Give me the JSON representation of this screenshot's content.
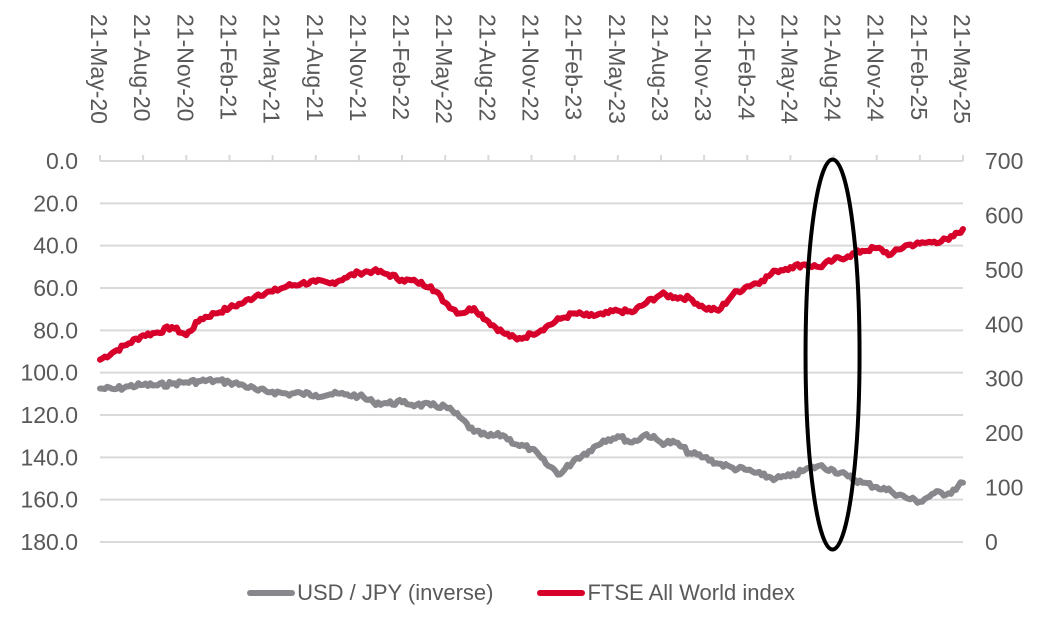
{
  "chart_data": {
    "type": "line",
    "title": "",
    "xlabel": "",
    "ylabel_left": "",
    "ylabel_right": "",
    "x_tick_labels": [
      "21-May-20",
      "21-Aug-20",
      "21-Nov-20",
      "21-Feb-21",
      "21-May-21",
      "21-Aug-21",
      "21-Nov-21",
      "21-Feb-22",
      "21-May-22",
      "21-Aug-22",
      "21-Nov-22",
      "21-Feb-23",
      "21-May-23",
      "21-Aug-23",
      "21-Nov-23",
      "21-Feb-24",
      "21-May-24",
      "21-Aug-24",
      "21-Nov-24",
      "21-Feb-25",
      "21-May-25"
    ],
    "y_left": {
      "range": [
        0,
        180
      ],
      "inverted": true,
      "tick_labels": [
        "0.0",
        "20.0",
        "40.0",
        "60.0",
        "80.0",
        "100.0",
        "120.0",
        "140.0",
        "160.0",
        "180.0"
      ],
      "ticks": [
        0,
        20,
        40,
        60,
        80,
        100,
        120,
        140,
        160,
        180
      ]
    },
    "y_right": {
      "range": [
        0,
        700
      ],
      "tick_labels": [
        "0",
        "100",
        "200",
        "300",
        "400",
        "500",
        "600",
        "700"
      ],
      "ticks": [
        0,
        100,
        200,
        300,
        400,
        500,
        600,
        700
      ]
    },
    "grid": true,
    "legend_position": "bottom",
    "x_months_from_start": [
      0,
      1,
      2,
      3,
      4,
      5,
      6,
      7,
      8,
      9,
      10,
      11,
      12,
      13,
      14,
      15,
      16,
      17,
      18,
      19,
      20,
      21,
      22,
      23,
      24,
      25,
      26,
      27,
      28,
      29,
      30,
      31,
      32,
      33,
      34,
      35,
      36,
      37,
      38,
      39,
      40,
      41,
      42,
      43,
      44,
      45,
      46,
      47,
      48,
      49,
      50,
      51,
      52,
      53,
      54,
      55,
      56,
      57,
      58,
      59,
      60
    ],
    "series": [
      {
        "name": "USD / JPY (inverse)",
        "axis": "left",
        "color": "#88878c",
        "values": [
          107.5,
          107.8,
          106.5,
          105.8,
          106,
          105.2,
          104.5,
          104,
          103.8,
          104.5,
          106,
          108.5,
          109,
          110,
          109.8,
          110.5,
          110.2,
          110.3,
          111,
          114,
          114.5,
          114,
          115.2,
          115.5,
          116,
          121,
          128,
          130,
          129.5,
          134,
          136,
          143,
          148,
          141,
          137,
          132,
          130,
          133,
          129,
          133,
          133,
          138,
          140,
          143,
          145,
          146,
          148.5,
          150,
          149,
          146,
          144,
          146,
          149,
          152,
          154,
          156,
          159,
          161,
          145,
          143,
          150
        ],
        "values_tail": [
          154,
          157,
          157,
          152,
          149,
          143,
          145
        ]
      },
      {
        "name": "FTSE All World index",
        "axis": "right",
        "color": "#d6002a",
        "values": [
          335,
          350,
          365,
          380,
          385,
          395,
          380,
          410,
          420,
          430,
          440,
          455,
          460,
          470,
          475,
          478,
          475,
          485,
          495,
          498,
          492,
          482,
          478,
          470,
          440,
          420,
          430,
          405,
          385,
          372,
          382,
          395,
          410,
          420,
          415,
          418,
          425,
          422,
          440,
          455,
          450,
          448,
          430,
          425,
          455,
          470,
          480,
          498,
          505,
          510,
          505,
          518,
          525,
          535,
          540,
          528,
          545,
          548,
          552,
          555,
          575
        ],
        "values_note": "monthly samples May-2020 to May-2025"
      }
    ],
    "annotation": {
      "type": "ellipse",
      "label": "",
      "around_x_tick": "21-Aug-24",
      "color": "#000000"
    }
  },
  "legend": {
    "items": [
      {
        "label": "USD / JPY (inverse)",
        "color": "#88878c"
      },
      {
        "label": "FTSE All World index",
        "color": "#d6002a"
      }
    ]
  }
}
